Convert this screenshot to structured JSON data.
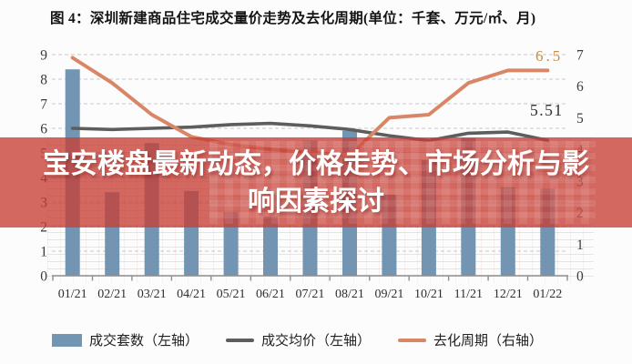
{
  "title": "图 4：深圳新建商品住宅成交量价走势及去化周期(单位：千套、万元/㎡、月)",
  "overlay_banner": {
    "line1": "宝安楼盘最新动态，价格走势、市场分析与影",
    "line2": "响因素探讨"
  },
  "chart_data": {
    "type": "combo: bar + 2 lines, dual y-axis",
    "title": "图 4：深圳新建商品住宅成交量价走势及去化周期(单位：千套、万元/㎡、月)",
    "categories": [
      "01/21",
      "02/21",
      "03/21",
      "04/21",
      "05/21",
      "06/21",
      "07/21",
      "08/21",
      "09/21",
      "10/21",
      "11/21",
      "12/21",
      "01/22"
    ],
    "series": [
      {
        "name": "成交套数（左轴）",
        "type": "bar",
        "axis": "left",
        "color": "#7295b4",
        "values": [
          8.4,
          3.4,
          5.4,
          3.45,
          2.6,
          2.4,
          5.5,
          5.9,
          3.3,
          4.7,
          5.6,
          3.6,
          3.55
        ]
      },
      {
        "name": "成交均价（左轴）",
        "type": "line",
        "axis": "left",
        "color": "#5d5d5d",
        "values": [
          6.0,
          5.95,
          6.0,
          6.05,
          6.15,
          6.2,
          6.1,
          5.95,
          5.7,
          5.5,
          5.8,
          5.85,
          5.51
        ]
      },
      {
        "name": "去化周期（右轴）",
        "type": "line",
        "axis": "right",
        "color": "#d98666",
        "values": [
          6.9,
          6.1,
          5.1,
          4.4,
          4.15,
          4.0,
          3.9,
          3.8,
          5.0,
          5.1,
          6.1,
          6.5,
          6.5
        ]
      }
    ],
    "left_axis": {
      "min": 0,
      "max": 9,
      "ticks": [
        0,
        1,
        2,
        3,
        4,
        5,
        6,
        7,
        8,
        9
      ]
    },
    "right_axis": {
      "min": 0,
      "max": 7,
      "ticks": [
        0,
        1,
        2,
        3,
        4,
        5,
        6,
        7
      ]
    },
    "grid": "horizontal dashed at left-axis intervals",
    "legend_position": "bottom",
    "annotations": [
      {
        "text": "6.5",
        "series": "去化周期（右轴）",
        "color": "#c49045"
      },
      {
        "text": "5.51",
        "series": "成交均价（左轴）",
        "color": "#2f2f2f"
      }
    ]
  },
  "colors": {
    "banner": "rgba(199,62,52,0.78)",
    "banner_text": "#ffffff",
    "background": "#fcfcfc",
    "grid": "#c9c9c9",
    "axis": "#8f8f8f",
    "tick_text": "#3a3a3a"
  }
}
